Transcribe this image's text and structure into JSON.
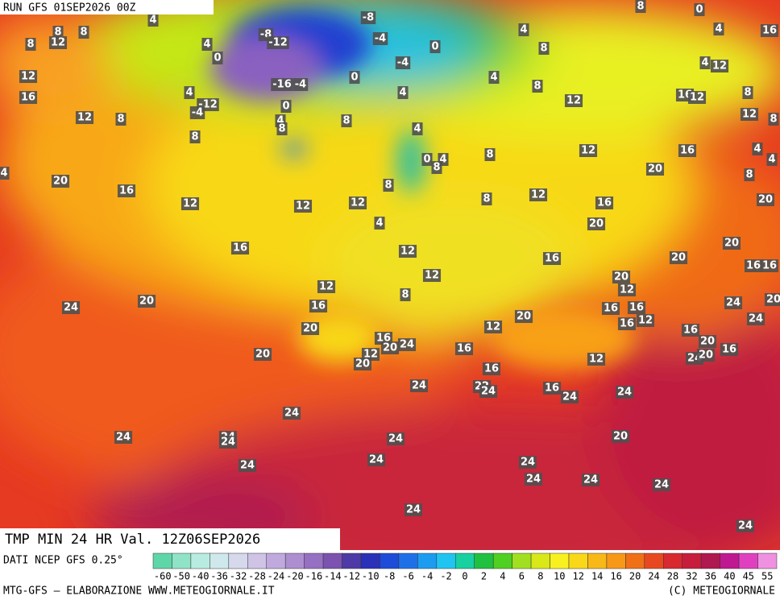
{
  "header": {
    "run": "RUN GFS 01SEP2026 00Z"
  },
  "title": "TMP MIN 24 HR Val. 12Z06SEP2026",
  "source": "DATI NCEP GFS 0.25°",
  "footer": {
    "left": "MTG-GFS — ELABORAZIONE WWW.METEOGIORNALE.IT",
    "right": "(C) METEOGIORNALE"
  },
  "colorbar": {
    "labels": [
      -60,
      -50,
      -40,
      -36,
      -32,
      -28,
      -24,
      -20,
      -16,
      -14,
      -12,
      -10,
      -8,
      -6,
      -4,
      -2,
      0,
      2,
      4,
      6,
      8,
      10,
      12,
      14,
      16,
      20,
      24,
      28,
      32,
      36,
      40,
      45,
      55
    ],
    "colors": [
      "#5fd6a8",
      "#8fe3c6",
      "#b9ece0",
      "#cfe8ec",
      "#d6d8ec",
      "#cfc3e6",
      "#c0a9dc",
      "#ad8ed0",
      "#9670c2",
      "#7b52b0",
      "#4e3aa6",
      "#2a30b8",
      "#1e4bd8",
      "#1f70e8",
      "#1c9cf0",
      "#20c4f0",
      "#18d0a0",
      "#20c040",
      "#50d020",
      "#a0e020",
      "#d8e818",
      "#f8f020",
      "#f8d818",
      "#f8b818",
      "#f89818",
      "#f07018",
      "#e84820",
      "#d82830",
      "#c81c3c",
      "#b01850",
      "#c01890",
      "#e040c0",
      "#f090e0"
    ]
  },
  "map_labels": [
    4,
    8,
    8,
    12,
    8,
    4,
    0,
    -8,
    -12,
    -8,
    -4,
    0,
    -4,
    0,
    -16,
    -4,
    4,
    -12,
    -4,
    0,
    12,
    16,
    12,
    8,
    8,
    4,
    8,
    8,
    4,
    8,
    4,
    4,
    8,
    12,
    8,
    0,
    4,
    16,
    12,
    4,
    16,
    12,
    8,
    12,
    8,
    4,
    0,
    4,
    8,
    8,
    12,
    16,
    20,
    4,
    4,
    8,
    20,
    4,
    20,
    16,
    12,
    12,
    12,
    8,
    4,
    8,
    12,
    16,
    20,
    20,
    20,
    16,
    16,
    16,
    12,
    12,
    16,
    12,
    20,
    12,
    24,
    20,
    16,
    8,
    16,
    16,
    24,
    20,
    20,
    12,
    20,
    16,
    12,
    16,
    24,
    20,
    16,
    24,
    20,
    12,
    20,
    16,
    20,
    12,
    16,
    24,
    20,
    16,
    24,
    22,
    24,
    16,
    24,
    24,
    24,
    24,
    24,
    24,
    24,
    20,
    24,
    24,
    24,
    24,
    24,
    24,
    24,
    24
  ]
}
